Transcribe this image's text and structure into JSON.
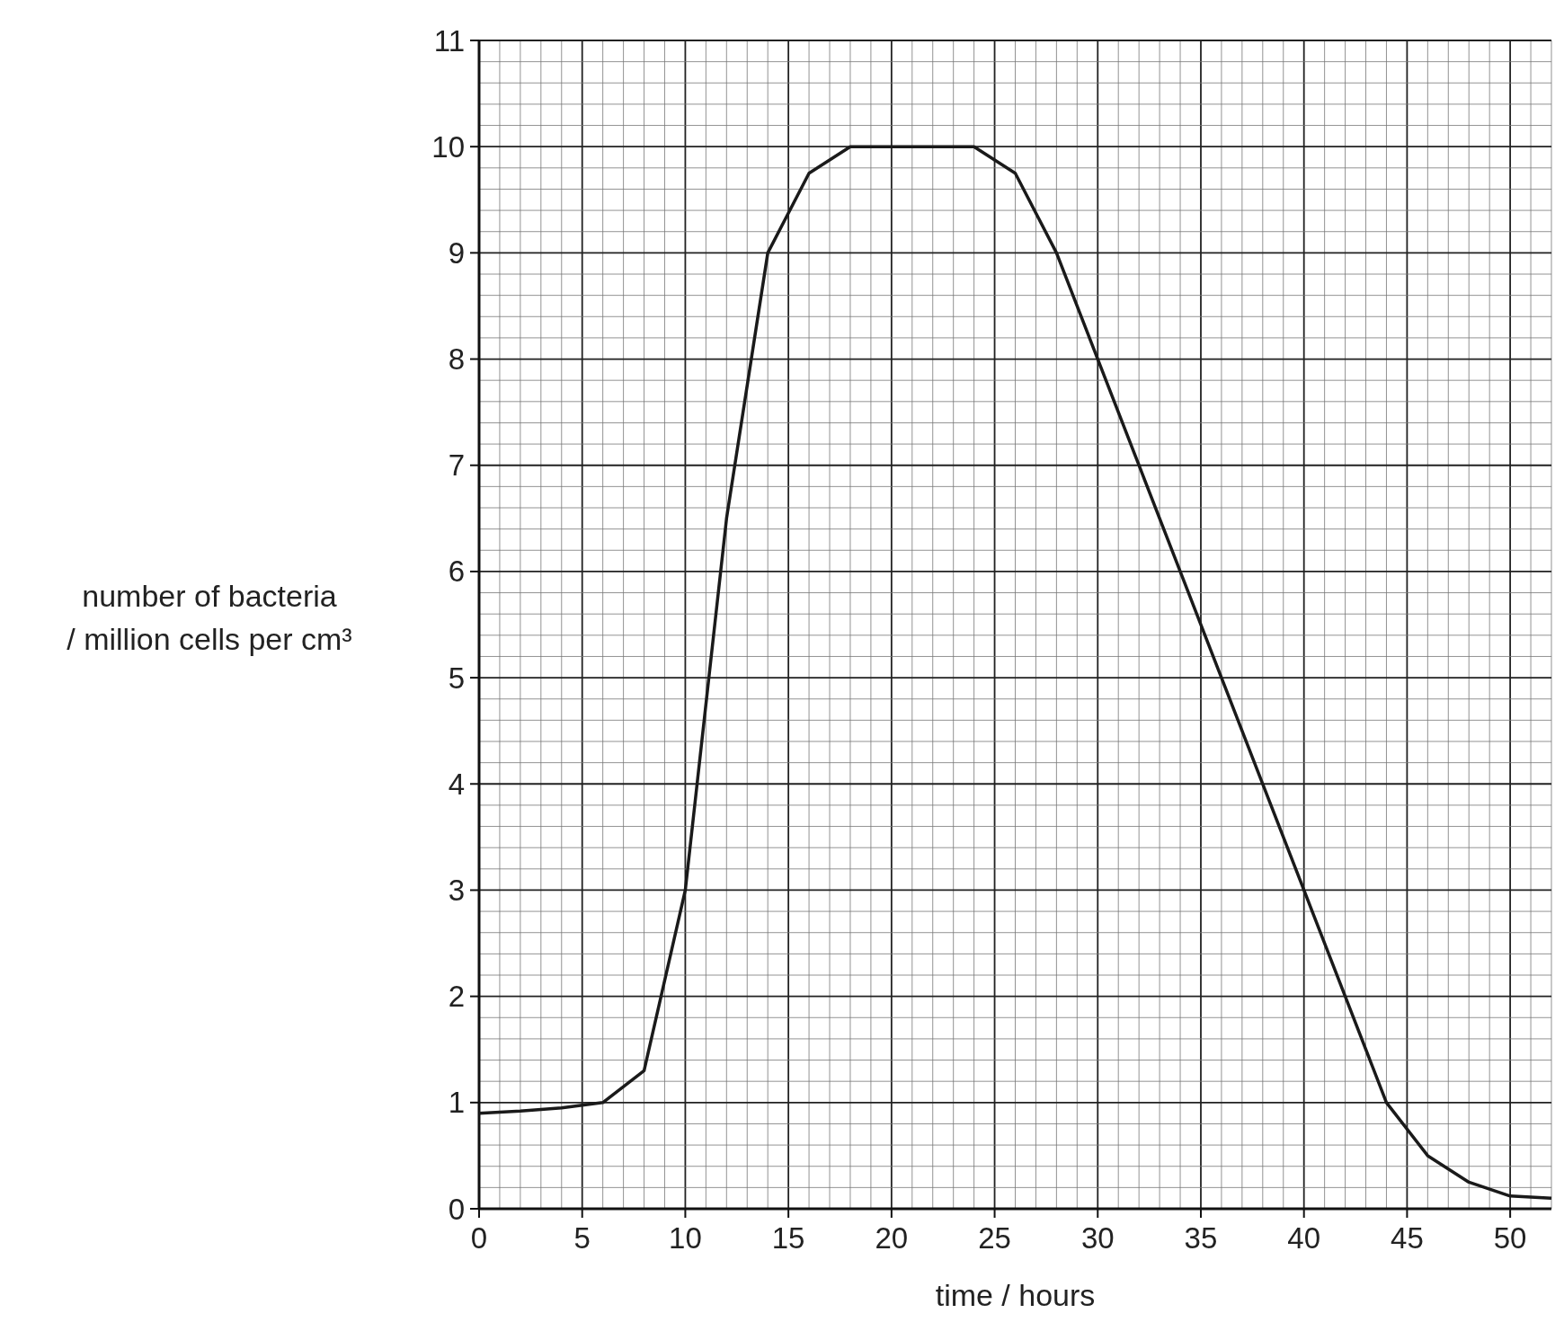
{
  "chart_data": {
    "type": "line",
    "xlabel": "time / hours",
    "ylabel": "number of bacteria\n/ million cells per cm³",
    "x": [
      0,
      2,
      4,
      6,
      8,
      10,
      12,
      14,
      16,
      18,
      20,
      22,
      24,
      26,
      28,
      30,
      32,
      34,
      36,
      38,
      40,
      42,
      44,
      46,
      48,
      50,
      52
    ],
    "series": [
      {
        "color": "#1a1a1a",
        "values": [
          0.9,
          0.92,
          0.95,
          1.0,
          1.3,
          3.0,
          6.5,
          9.0,
          9.75,
          10,
          10,
          10,
          10,
          9.75,
          9.0,
          8.0,
          7.0,
          6.0,
          5.0,
          4.0,
          3.0,
          2.0,
          1.0,
          0.5,
          0.25,
          0.12,
          0.1
        ]
      }
    ],
    "xlim": [
      0,
      52
    ],
    "ylim": [
      0,
      11
    ],
    "xticks": [
      0,
      5,
      10,
      15,
      20,
      25,
      30,
      35,
      40,
      45,
      50
    ],
    "yticks": [
      0,
      1,
      2,
      3,
      4,
      5,
      6,
      7,
      8,
      9,
      10,
      11
    ],
    "grid": true,
    "marker": "none",
    "line_style": "solid"
  }
}
